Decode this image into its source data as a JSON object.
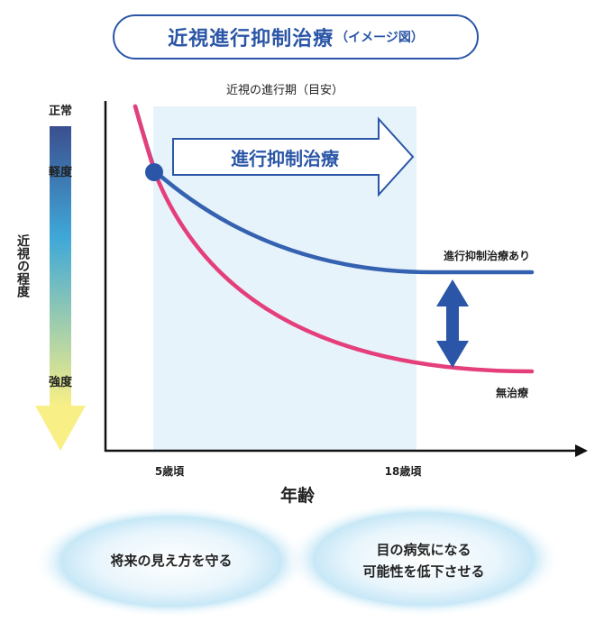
{
  "title": {
    "main": "近視進行抑制治療",
    "sub": "（イメージ図）"
  },
  "period_label": "近視の進行期（目安）",
  "treatment_arrow_label": "進行抑制治療",
  "y_axis": {
    "title": "近視の程度",
    "levels": [
      "正常",
      "軽度",
      "強度"
    ],
    "gradient_colors": [
      "#3b4f8f",
      "#3fa8d8",
      "#f8ef86"
    ]
  },
  "x_axis": {
    "title": "年齢",
    "ticks": [
      "5歳頃",
      "18歳頃"
    ]
  },
  "series": [
    {
      "name": "進行抑制治療あり",
      "color": "#3461b0"
    },
    {
      "name": "無治療",
      "color": "#e53f7b"
    }
  ],
  "bubbles": [
    {
      "text": "将来の見え方を守る"
    },
    {
      "lines": [
        "目の病気になる",
        "可能性を低下させる"
      ]
    }
  ]
}
